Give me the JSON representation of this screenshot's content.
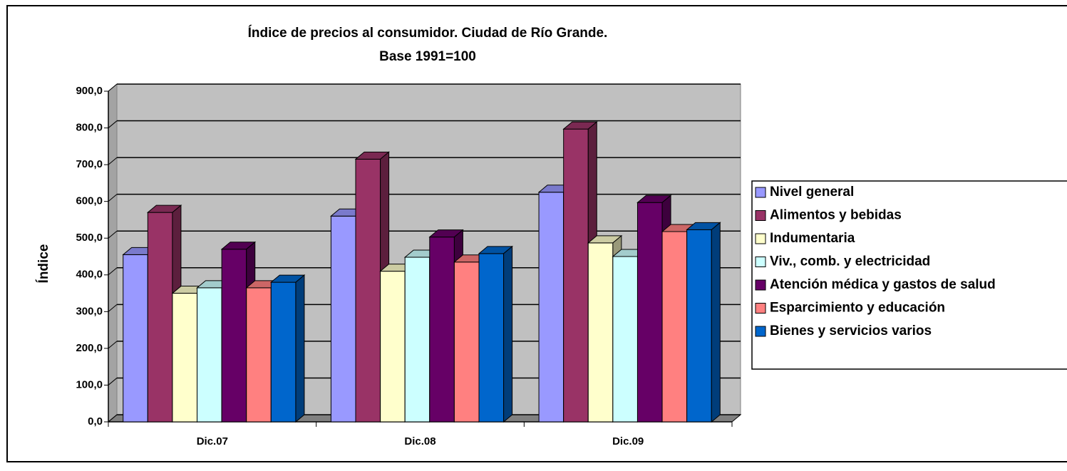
{
  "chart_data": {
    "type": "bar3d",
    "title": "Índice de precios al consumidor. Ciudad de Río Grande.",
    "subtitle": "Base 1991=100",
    "y_label": "Índice",
    "categories": [
      "Dic.07",
      "Dic.08",
      "Dic.09"
    ],
    "series": [
      {
        "name": "Nivel general",
        "color": "#9999ff",
        "values": [
          455,
          560,
          625
        ]
      },
      {
        "name": "Alimentos y bebidas",
        "color": "#993366",
        "values": [
          570,
          715,
          797
        ]
      },
      {
        "name": "Indumentaria",
        "color": "#ffffcc",
        "values": [
          350,
          410,
          487
        ]
      },
      {
        "name": "Viv., comb. y electricidad",
        "color": "#ccffff",
        "values": [
          365,
          448,
          450
        ]
      },
      {
        "name": "Atención médica y gastos de salud",
        "color": "#660066",
        "values": [
          470,
          503,
          597
        ]
      },
      {
        "name": "Esparcimiento y educación",
        "color": "#ff8080",
        "values": [
          365,
          435,
          518
        ]
      },
      {
        "name": "Bienes y servicios varios",
        "color": "#0066cc",
        "values": [
          380,
          458,
          523
        ]
      }
    ],
    "ylim": [
      0,
      900
    ],
    "yticks": [
      {
        "value": 0,
        "label": "0,0"
      },
      {
        "value": 100,
        "label": "100,0"
      },
      {
        "value": 200,
        "label": "200,0"
      },
      {
        "value": 300,
        "label": "300,0"
      },
      {
        "value": 400,
        "label": "400,0"
      },
      {
        "value": 500,
        "label": "500,0"
      },
      {
        "value": 600,
        "label": "600,0"
      },
      {
        "value": 700,
        "label": "700,0"
      },
      {
        "value": 800,
        "label": "800,0"
      },
      {
        "value": 900,
        "label": "900,0"
      }
    ],
    "grid": true,
    "legend": "right",
    "wall_color": "#c0c0c0"
  }
}
